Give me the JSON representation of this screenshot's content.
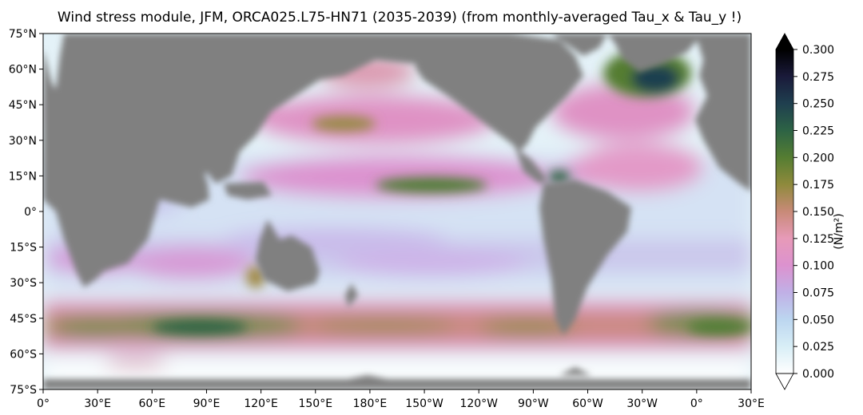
{
  "title": "Wind stress module, JFM, ORCA025.L75-HN71 (2035-2039) (from monthly-averaged Tau_x & Tau_y !)",
  "colorbar": {
    "label": "(N/m²)",
    "ticks": [
      "0.000",
      "0.025",
      "0.050",
      "0.075",
      "0.100",
      "0.125",
      "0.150",
      "0.175",
      "0.200",
      "0.225",
      "0.250",
      "0.275",
      "0.300"
    ],
    "range": [
      0.0,
      0.3
    ],
    "extend": "both",
    "colormap": [
      "#ffffff",
      "#d8eef6",
      "#bcd6f0",
      "#c0b0e6",
      "#dc92cf",
      "#e79ab8",
      "#c88a78",
      "#8f8a3c",
      "#557d32",
      "#2d6345",
      "#1f3f4f",
      "#1a1a3a",
      "#000000"
    ]
  },
  "axes": {
    "lon_labels": [
      "0°",
      "30°E",
      "60°E",
      "90°E",
      "120°E",
      "150°E",
      "180°E",
      "150°W",
      "120°W",
      "90°W",
      "60°W",
      "30°W",
      "0°",
      "30°E"
    ],
    "lat_labels": [
      "75°N",
      "60°N",
      "45°N",
      "30°N",
      "15°N",
      "0°",
      "15°S",
      "30°S",
      "45°S",
      "60°S",
      "75°S"
    ],
    "land_color": "#808080"
  }
}
